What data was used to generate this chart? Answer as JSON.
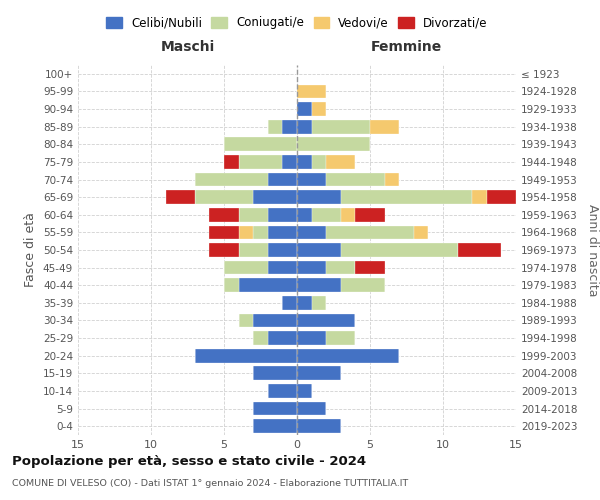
{
  "age_groups": [
    "0-4",
    "5-9",
    "10-14",
    "15-19",
    "20-24",
    "25-29",
    "30-34",
    "35-39",
    "40-44",
    "45-49",
    "50-54",
    "55-59",
    "60-64",
    "65-69",
    "70-74",
    "75-79",
    "80-84",
    "85-89",
    "90-94",
    "95-99",
    "100+"
  ],
  "birth_years": [
    "2019-2023",
    "2014-2018",
    "2009-2013",
    "2004-2008",
    "1999-2003",
    "1994-1998",
    "1989-1993",
    "1984-1988",
    "1979-1983",
    "1974-1978",
    "1969-1973",
    "1964-1968",
    "1959-1963",
    "1954-1958",
    "1949-1953",
    "1944-1948",
    "1939-1943",
    "1934-1938",
    "1929-1933",
    "1924-1928",
    "≤ 1923"
  ],
  "colors": {
    "celibe": "#4472c4",
    "coniugato": "#c5d9a0",
    "vedovo": "#f5c96e",
    "divorziato": "#cc2222"
  },
  "maschi": {
    "celibe": [
      3,
      3,
      2,
      3,
      7,
      2,
      3,
      1,
      4,
      2,
      2,
      2,
      2,
      3,
      2,
      1,
      0,
      1,
      0,
      0,
      0
    ],
    "coniugato": [
      0,
      0,
      0,
      0,
      0,
      1,
      1,
      0,
      1,
      3,
      2,
      1,
      2,
      4,
      5,
      3,
      5,
      1,
      0,
      0,
      0
    ],
    "vedovo": [
      0,
      0,
      0,
      0,
      0,
      0,
      0,
      0,
      0,
      0,
      0,
      1,
      0,
      0,
      0,
      0,
      0,
      0,
      0,
      0,
      0
    ],
    "divorziato": [
      0,
      0,
      0,
      0,
      0,
      0,
      0,
      0,
      0,
      0,
      2,
      2,
      2,
      2,
      0,
      1,
      0,
      0,
      0,
      0,
      0
    ]
  },
  "femmine": {
    "celibe": [
      3,
      2,
      1,
      3,
      7,
      2,
      4,
      1,
      3,
      2,
      3,
      2,
      1,
      3,
      2,
      1,
      0,
      1,
      1,
      0,
      0
    ],
    "coniugato": [
      0,
      0,
      0,
      0,
      0,
      2,
      0,
      1,
      3,
      2,
      8,
      6,
      2,
      9,
      4,
      1,
      5,
      4,
      0,
      0,
      0
    ],
    "vedovo": [
      0,
      0,
      0,
      0,
      0,
      0,
      0,
      0,
      0,
      0,
      0,
      1,
      1,
      1,
      1,
      2,
      0,
      2,
      1,
      2,
      0
    ],
    "divorziato": [
      0,
      0,
      0,
      0,
      0,
      0,
      0,
      0,
      0,
      2,
      3,
      0,
      2,
      2,
      0,
      0,
      0,
      0,
      0,
      0,
      0
    ]
  },
  "title": "Popolazione per età, sesso e stato civile - 2024",
  "subtitle": "COMUNE DI VELESO (CO) - Dati ISTAT 1° gennaio 2024 - Elaborazione TUTTITALIA.IT",
  "xlabel_left": "Maschi",
  "xlabel_right": "Femmine",
  "ylabel_left": "Fasce di età",
  "ylabel_right": "Anni di nascita",
  "xlim": 15,
  "legend_labels": [
    "Celibi/Nubili",
    "Coniugati/e",
    "Vedovi/e",
    "Divorzati/e"
  ],
  "background_color": "#ffffff",
  "grid_color": "#cccccc"
}
